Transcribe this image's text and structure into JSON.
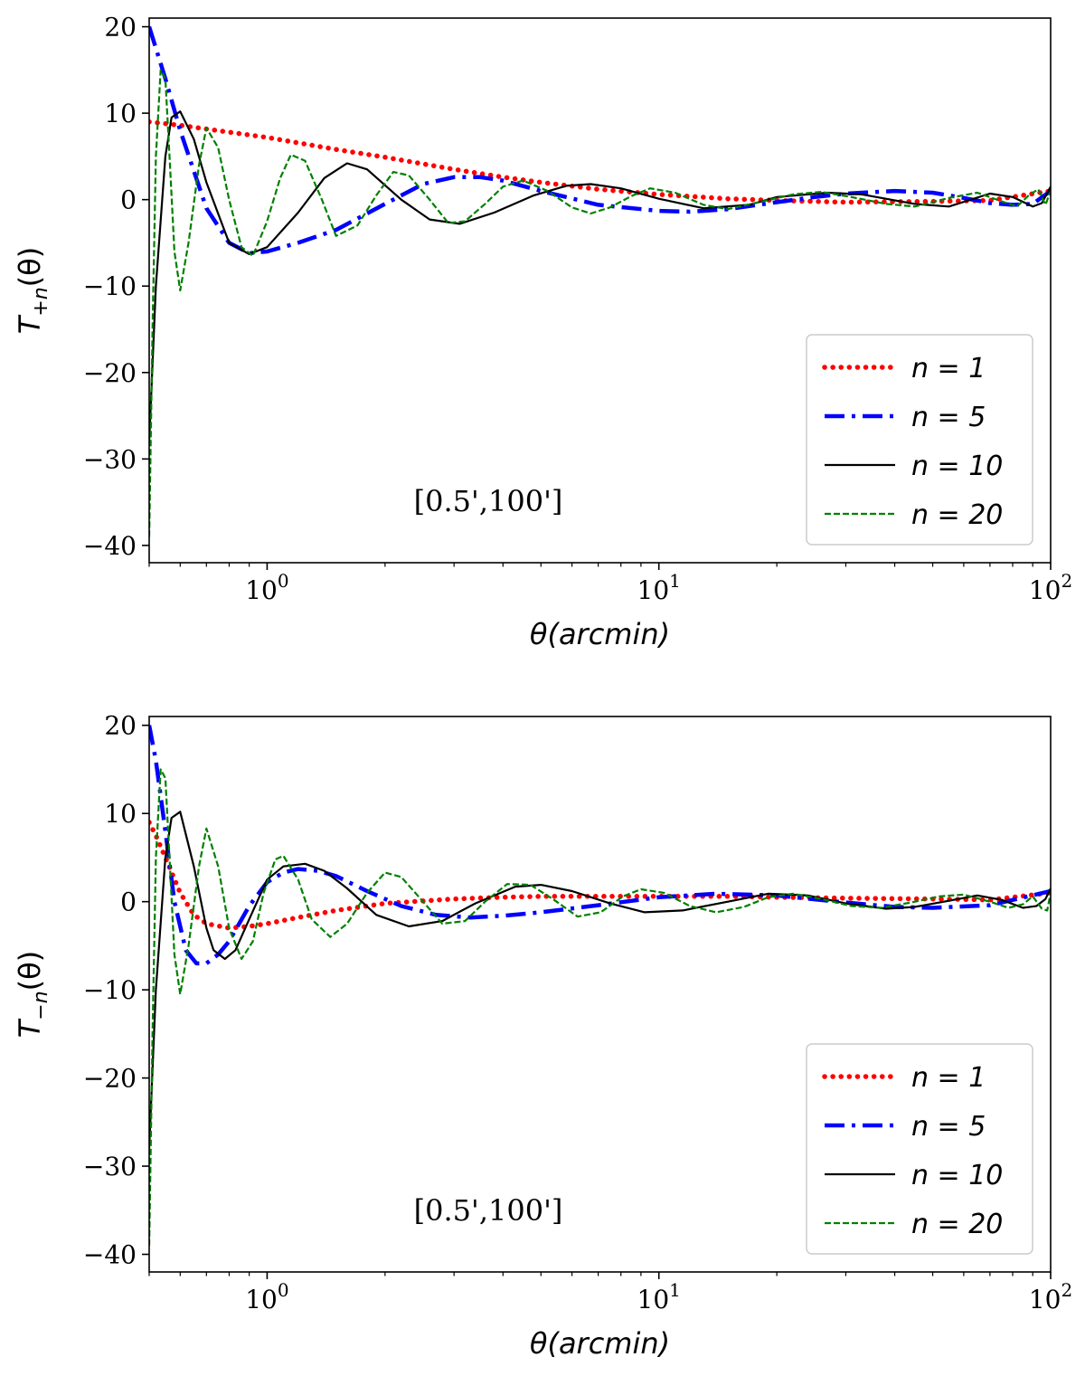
{
  "chart_data": [
    {
      "type": "line",
      "id": "top",
      "ylabel": "T_{+n}(θ)",
      "ylabel_main": "T",
      "ylabel_sub": "+n",
      "ylabel_paren": "(θ)",
      "xlabel": "θ(arcmin)",
      "xlabel_main": "θ",
      "xlabel_paren": "(arcmin)",
      "xscale": "log",
      "xlim": [
        0.5,
        100
      ],
      "ylim": [
        -42,
        21
      ],
      "x_ticks": [
        {
          "base": "10",
          "exp": "0",
          "value": 1
        },
        {
          "base": "10",
          "exp": "1",
          "value": 10
        },
        {
          "base": "10",
          "exp": "2",
          "value": 100
        }
      ],
      "y_ticks": [
        20,
        10,
        0,
        -10,
        -20,
        -30,
        -40
      ],
      "y_tick_labels": [
        "20",
        "10",
        "0",
        "−10",
        "−20",
        "−30",
        "−40"
      ],
      "annotation": "[0.5',100']",
      "legend_position": "lower-right",
      "series": [
        {
          "name": "n = 1",
          "n": "1",
          "color": "#ff0000",
          "style": "dotted",
          "x": [
            0.5,
            0.6,
            0.8,
            1,
            1.5,
            2,
            3,
            4,
            5,
            7,
            10,
            15,
            20,
            30,
            50,
            70,
            100
          ],
          "y": [
            9,
            8.6,
            7.8,
            7.2,
            5.8,
            4.9,
            3.5,
            2.6,
            2.0,
            1.2,
            0.6,
            0.1,
            -0.1,
            -0.3,
            -0.2,
            -0.1,
            1.0
          ]
        },
        {
          "name": "n = 5",
          "n": "5",
          "color": "#0000ff",
          "style": "dashdot",
          "x": [
            0.5,
            0.55,
            0.6,
            0.7,
            0.8,
            0.9,
            1.0,
            1.2,
            1.5,
            2,
            2.5,
            3,
            3.5,
            4,
            5,
            7,
            10,
            12,
            15,
            20,
            25,
            30,
            40,
            50,
            60,
            70,
            80,
            90,
            100
          ],
          "y": [
            20,
            14,
            8,
            -1,
            -5,
            -6.2,
            -6,
            -5,
            -3.5,
            -0.5,
            1.8,
            2.6,
            2.6,
            2.2,
            1.0,
            -0.6,
            -1.3,
            -1.4,
            -1.1,
            -0.3,
            0.3,
            0.7,
            1.0,
            0.8,
            0.2,
            -0.4,
            -0.6,
            -0.5,
            1.0
          ]
        },
        {
          "name": "n = 10",
          "n": "10",
          "color": "#000000",
          "style": "solid",
          "x": [
            0.5,
            0.52,
            0.55,
            0.57,
            0.6,
            0.65,
            0.7,
            0.8,
            0.9,
            1.0,
            1.2,
            1.4,
            1.6,
            1.8,
            2.2,
            2.6,
            3.1,
            3.8,
            4.8,
            5.8,
            6.7,
            8,
            10,
            13,
            17,
            20,
            27,
            33,
            45,
            55,
            70,
            80,
            90,
            95,
            100
          ],
          "y": [
            -28,
            -10,
            5,
            9.5,
            10.2,
            7,
            2,
            -5,
            -6.3,
            -5.5,
            -1.5,
            2.5,
            4.2,
            3.5,
            0,
            -2.3,
            -2.8,
            -1.5,
            0.5,
            1.6,
            1.8,
            1.3,
            0.1,
            -1.0,
            -0.6,
            0.3,
            0.8,
            0.6,
            -0.5,
            -0.8,
            0.7,
            0.3,
            -0.8,
            -0.4,
            1.5
          ]
        },
        {
          "name": "n = 20",
          "n": "20",
          "color": "#008000",
          "style": "dashed",
          "x": [
            0.5,
            0.51,
            0.52,
            0.535,
            0.55,
            0.565,
            0.58,
            0.6,
            0.63,
            0.67,
            0.7,
            0.75,
            0.8,
            0.86,
            0.92,
            1.0,
            1.08,
            1.15,
            1.25,
            1.38,
            1.5,
            1.7,
            1.9,
            2.1,
            2.3,
            2.6,
            2.9,
            3.2,
            3.6,
            4.0,
            4.5,
            5.2,
            6.0,
            6.7,
            7.5,
            8.5,
            9.5,
            11,
            13,
            15,
            18,
            22,
            26,
            31,
            38,
            45,
            55,
            65,
            75,
            82,
            88,
            93,
            97,
            100
          ],
          "y": [
            -39,
            -15,
            5,
            15,
            14,
            4,
            -6,
            -10.5,
            -5,
            4,
            8.3,
            6,
            0,
            -5.5,
            -6.5,
            -2.5,
            2.5,
            5.2,
            4.5,
            0,
            -4.2,
            -3,
            0.5,
            3.2,
            2.8,
            0,
            -2.7,
            -2.5,
            -0.5,
            1.5,
            2.2,
            1.0,
            -0.9,
            -1.6,
            -0.9,
            0.4,
            1.3,
            0.8,
            -0.6,
            -1.1,
            -0.3,
            0.6,
            0.9,
            0.3,
            -0.5,
            -0.8,
            0.2,
            0.8,
            -0.2,
            -0.8,
            0.5,
            1.2,
            -0.6,
            1.0
          ]
        }
      ]
    },
    {
      "type": "line",
      "id": "bottom",
      "ylabel": "T_{−n}(θ)",
      "ylabel_main": "T",
      "ylabel_sub": "−n",
      "ylabel_paren": "(θ)",
      "xlabel": "θ(arcmin)",
      "xlabel_main": "θ",
      "xlabel_paren": "(arcmin)",
      "xscale": "log",
      "xlim": [
        0.5,
        100
      ],
      "ylim": [
        -42,
        21
      ],
      "x_ticks": [
        {
          "base": "10",
          "exp": "0",
          "value": 1
        },
        {
          "base": "10",
          "exp": "1",
          "value": 10
        },
        {
          "base": "10",
          "exp": "2",
          "value": 100
        }
      ],
      "y_ticks": [
        20,
        10,
        0,
        -10,
        -20,
        -30,
        -40
      ],
      "y_tick_labels": [
        "20",
        "10",
        "0",
        "−10",
        "−20",
        "−30",
        "−40"
      ],
      "annotation": "[0.5',100']",
      "legend_position": "lower-right",
      "series": [
        {
          "name": "n = 1",
          "n": "1",
          "color": "#ff0000",
          "style": "dotted",
          "x": [
            0.5,
            0.52,
            0.55,
            0.6,
            0.65,
            0.7,
            0.8,
            0.9,
            1.0,
            1.2,
            1.5,
            2,
            3,
            4,
            5,
            7,
            10,
            15,
            20,
            30,
            50,
            70,
            100
          ],
          "y": [
            9,
            7.5,
            5,
            1,
            -1.5,
            -2.5,
            -3,
            -2.8,
            -2.5,
            -1.8,
            -1.0,
            -0.2,
            0.3,
            0.5,
            0.6,
            0.6,
            0.6,
            0.6,
            0.5,
            0.4,
            0.3,
            0.2,
            1.0
          ]
        },
        {
          "name": "n = 5",
          "n": "5",
          "color": "#0000ff",
          "style": "dashdot",
          "x": [
            0.5,
            0.52,
            0.55,
            0.58,
            0.62,
            0.66,
            0.7,
            0.75,
            0.8,
            0.9,
            1.0,
            1.1,
            1.2,
            1.35,
            1.5,
            1.8,
            2.2,
            2.7,
            3.3,
            4,
            5,
            7,
            10,
            14,
            20,
            30,
            40,
            50,
            70,
            100
          ],
          "y": [
            20,
            16,
            8,
            0,
            -5.5,
            -7,
            -7,
            -6,
            -4.5,
            -0.5,
            2.2,
            3.3,
            3.7,
            3.5,
            2.9,
            1.2,
            -0.5,
            -1.5,
            -1.8,
            -1.6,
            -1.2,
            -0.4,
            0.5,
            0.9,
            0.7,
            -0.1,
            -0.6,
            -0.7,
            -0.4,
            1.2
          ]
        },
        {
          "name": "n = 10",
          "n": "10",
          "color": "#000000",
          "style": "solid",
          "x": [
            0.5,
            0.52,
            0.55,
            0.57,
            0.6,
            0.65,
            0.7,
            0.73,
            0.78,
            0.83,
            0.9,
            1.0,
            1.1,
            1.25,
            1.4,
            1.6,
            1.9,
            2.3,
            2.8,
            3.4,
            4.3,
            5.0,
            6.0,
            7.5,
            9.2,
            11.5,
            15,
            19,
            24,
            30,
            38,
            45,
            55,
            65,
            75,
            85,
            92,
            97,
            100
          ],
          "y": [
            -28,
            -10,
            5,
            9.5,
            10.2,
            4,
            -3,
            -5.5,
            -6.5,
            -5.5,
            -2,
            2.5,
            4,
            4.3,
            3.5,
            1.5,
            -1.5,
            -2.8,
            -2.2,
            -0.2,
            1.7,
            1.9,
            1.2,
            -0.2,
            -1.2,
            -1.0,
            0.0,
            0.9,
            0.7,
            -0.2,
            -0.8,
            -0.6,
            0.1,
            0.7,
            0.2,
            -0.7,
            -0.5,
            0.3,
            1.5
          ]
        },
        {
          "name": "n = 20",
          "n": "20",
          "color": "#008000",
          "style": "dashed",
          "x": [
            0.5,
            0.51,
            0.52,
            0.535,
            0.55,
            0.565,
            0.58,
            0.6,
            0.63,
            0.67,
            0.7,
            0.75,
            0.8,
            0.86,
            0.92,
            0.98,
            1.05,
            1.1,
            1.2,
            1.3,
            1.45,
            1.6,
            1.8,
            2.0,
            2.2,
            2.5,
            2.8,
            3.2,
            3.6,
            4.1,
            4.7,
            5.4,
            6.2,
            7.1,
            8.1,
            9.0,
            10.3,
            12,
            14,
            16.5,
            19,
            22,
            26,
            31,
            37,
            44,
            52,
            60,
            70,
            78,
            85,
            90,
            95,
            98,
            100
          ],
          "y": [
            -39,
            -15,
            5,
            15,
            14,
            4,
            -6,
            -10.5,
            -5,
            4,
            8.3,
            4,
            -3,
            -6.5,
            -4.5,
            1,
            4.8,
            5.2,
            2.5,
            -2,
            -4,
            -2.5,
            1,
            3.3,
            2.8,
            0,
            -2.5,
            -2.2,
            0,
            2.0,
            1.9,
            0.2,
            -1.7,
            -1.2,
            0.6,
            1.4,
            1.0,
            -0.5,
            -1.2,
            -0.6,
            0.5,
            0.9,
            0.3,
            -0.5,
            -0.7,
            -0.1,
            0.6,
            0.8,
            0.0,
            -0.7,
            -0.3,
            0.6,
            -0.8,
            -1.0,
            1.0
          ]
        }
      ]
    }
  ]
}
